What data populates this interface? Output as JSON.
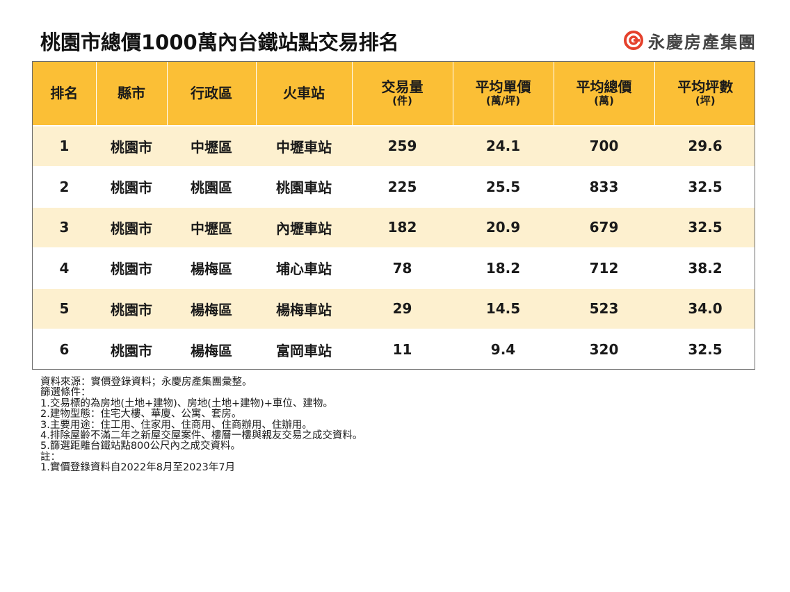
{
  "title": "桃園市總價1000萬內台鐵站點交易排名",
  "brand": {
    "name": "永慶房產集團",
    "logo_icon": "yungching-logo-icon",
    "logo_color": "#e5412c"
  },
  "colors": {
    "header_bg": "#fbbf36",
    "row_alt_bg": "#fdf0cf",
    "row_bg": "#ffffff"
  },
  "chart_data": {
    "type": "table",
    "title": "桃園市總價1000萬內台鐵站點交易排名",
    "columns": [
      {
        "label": "排名",
        "unit": ""
      },
      {
        "label": "縣市",
        "unit": ""
      },
      {
        "label": "行政區",
        "unit": ""
      },
      {
        "label": "火車站",
        "unit": ""
      },
      {
        "label": "交易量",
        "unit": "(件)"
      },
      {
        "label": "平均單價",
        "unit": "(萬/坪)"
      },
      {
        "label": "平均總價",
        "unit": "(萬)"
      },
      {
        "label": "平均坪數",
        "unit": "(坪)"
      }
    ],
    "rows": [
      [
        "1",
        "桃園市",
        "中壢區",
        "中壢車站",
        "259",
        "24.1",
        "700",
        "29.6"
      ],
      [
        "2",
        "桃園市",
        "桃園區",
        "桃園車站",
        "225",
        "25.5",
        "833",
        "32.5"
      ],
      [
        "3",
        "桃園市",
        "中壢區",
        "內壢車站",
        "182",
        "20.9",
        "679",
        "32.5"
      ],
      [
        "4",
        "桃園市",
        "楊梅區",
        "埔心車站",
        "78",
        "18.2",
        "712",
        "38.2"
      ],
      [
        "5",
        "桃園市",
        "楊梅區",
        "楊梅車站",
        "29",
        "14.5",
        "523",
        "34.0"
      ],
      [
        "6",
        "桃園市",
        "楊梅區",
        "富岡車站",
        "11",
        "9.4",
        "320",
        "32.5"
      ]
    ]
  },
  "notes": [
    "資料來源：實價登錄資料；永慶房產集團彙整。",
    "篩選條件：",
    "1.交易標的為房地(土地+建物)、房地(土地+建物)+車位、建物。",
    "2.建物型態：住宅大樓、華廈、公寓、套房。",
    "3.主要用途：住工用、住家用、住商用、住商辦用、住辦用。",
    "4.排除屋齡不滿二年之新屋交屋案件、樓層一樓與親友交易之成交資料。",
    "5.篩選距離台鐵站點800公尺內之成交資料。",
    "註：",
    "1.實價登錄資料自2022年8月至2023年7月"
  ]
}
